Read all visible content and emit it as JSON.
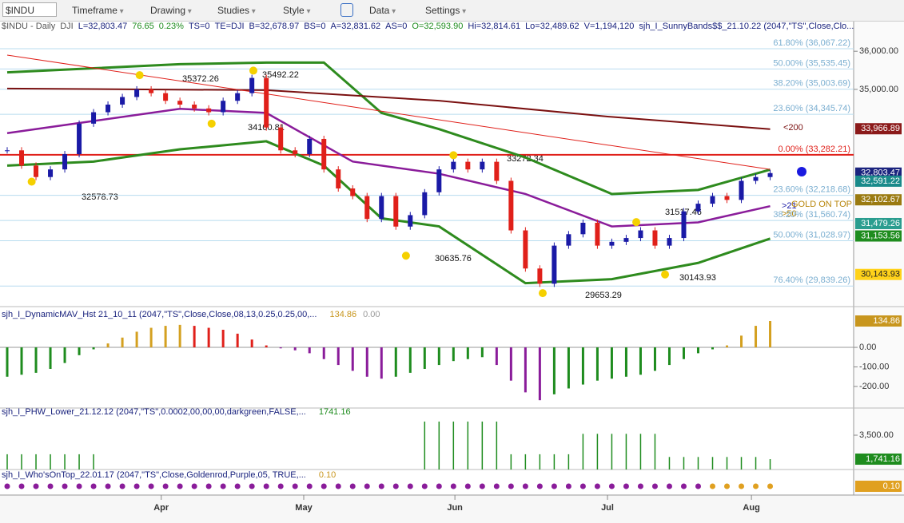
{
  "toolbar": {
    "symbol": "$INDU",
    "buttons": [
      "Timeframe",
      "Drawing",
      "Studies",
      "Style",
      "Data",
      "Settings"
    ]
  },
  "header": {
    "parts": [
      {
        "text": "$INDU - Daily",
        "color": "#555555"
      },
      {
        "text": "DJI",
        "color": "#555555"
      },
      {
        "text": "L=32,803.47",
        "color": "#1a237e"
      },
      {
        "text": "76.65",
        "color": "#1e8c1e"
      },
      {
        "text": "0.23%",
        "color": "#1e8c1e"
      },
      {
        "text": "TS=0",
        "color": "#1a237e"
      },
      {
        "text": "TE=DJI",
        "color": "#1a237e"
      },
      {
        "text": "B=32,678.97",
        "color": "#1a237e"
      },
      {
        "text": "BS=0",
        "color": "#1a237e"
      },
      {
        "text": "A=32,831.62",
        "color": "#1a237e"
      },
      {
        "text": "AS=0",
        "color": "#1a237e"
      },
      {
        "text": "O=32,593.90",
        "color": "#1e8c1e"
      },
      {
        "text": "Hi=32,814.61",
        "color": "#1a237e"
      },
      {
        "text": "Lo=32,489.62",
        "color": "#1a237e"
      },
      {
        "text": "V=1,194,120",
        "color": "#1a237e"
      },
      {
        "text": "sjh_I_SunnyBands$$_21.10.22 (2047,\"TS\",Close,Clo...",
        "color": "#1a237e"
      }
    ]
  },
  "x_axis": {
    "xlim": [
      -0.5,
      58.8
    ],
    "xticks": [
      {
        "value": 10.7,
        "label": "Apr"
      },
      {
        "value": 20.6,
        "label": "May"
      },
      {
        "value": 31.1,
        "label": "Jun"
      },
      {
        "value": 41.7,
        "label": "Jul"
      },
      {
        "value": 51.7,
        "label": "Aug"
      }
    ]
  },
  "price_pane": {
    "ylim": [
      29300,
      36800
    ],
    "yticks": [
      {
        "value": 36000,
        "label": "36,000.00"
      },
      {
        "value": 35000,
        "label": "35,000.00"
      }
    ],
    "up_color": "#1a1aa6",
    "down_color": "#e0201a",
    "closes": [
      33400,
      33000,
      32700,
      32900,
      33300,
      34100,
      34400,
      34600,
      34800,
      35000,
      34900,
      34700,
      34600,
      34500,
      34400,
      34700,
      34900,
      35300,
      34000,
      33400,
      33300,
      33700,
      32900,
      32400,
      32200,
      31600,
      32200,
      31400,
      31700,
      32300,
      32900,
      33100,
      32900,
      33100,
      32600,
      31300,
      30300,
      29900,
      30900,
      31200,
      31500,
      30900,
      31000,
      31100,
      31300,
      30900,
      31100,
      31800,
      32000,
      32200,
      32100,
      32600,
      32700,
      32803.47
    ],
    "lines": [
      {
        "color": "#2e8b1e",
        "width": 3,
        "x": [
          0,
          6,
          12,
          18,
          22,
          26,
          30,
          36,
          42,
          48,
          53
        ],
        "values": [
          35447,
          35553,
          35660,
          35702,
          35702,
          34383,
          33957,
          33213,
          32255,
          32362,
          32894
        ]
      },
      {
        "color": "#2e8b1e",
        "width": 3,
        "x": [
          0,
          6,
          12,
          18,
          22,
          26,
          30,
          36,
          42,
          48,
          53
        ],
        "values": [
          33000,
          33106,
          33426,
          33638,
          33000,
          31617,
          31404,
          29915,
          30021,
          30447,
          31085
        ]
      },
      {
        "color": "#7a1010",
        "width": 2,
        "x": [
          0,
          18,
          30,
          42,
          53
        ],
        "values": [
          35021,
          34979,
          34702,
          34277,
          33957
        ]
      },
      {
        "color": "#8a1c9a",
        "width": 2.5,
        "x": [
          0,
          6,
          12,
          18,
          24,
          30,
          36,
          42,
          48,
          53
        ],
        "values": [
          33851,
          34170,
          34489,
          34383,
          33106,
          32787,
          32255,
          31404,
          31511,
          31936
        ]
      },
      {
        "color": "#e0201a",
        "width": 1,
        "x": [
          0,
          53
        ],
        "values": [
          35900,
          32900
        ]
      }
    ],
    "fib_levels": [
      {
        "value": 36067.22,
        "label": "61.80% (36,067.22)"
      },
      {
        "value": 35535.45,
        "label": "50.00% (35,535.45)"
      },
      {
        "value": 35003.69,
        "label": "38.20% (35,003.69)"
      },
      {
        "value": 34345.74,
        "label": "23.60% (34,345.74)"
      },
      {
        "value": 33282.21,
        "label": "0.00% (33,282.21)"
      },
      {
        "value": 32218.68,
        "label": "23.60% (32,218.68)"
      },
      {
        "value": 31560.74,
        "label": "38.20% (31,560.74)"
      },
      {
        "value": 31028.97,
        "label": "50.00% (31,028.97)"
      },
      {
        "value": 29839.26,
        "label": "76.40% (29,839.26)"
      }
    ],
    "annotations": [
      {
        "x": 9.2,
        "value": 35372.26
      },
      {
        "x": 17.1,
        "value": 35492.22
      },
      {
        "x": 14.2,
        "value": 34100.81
      },
      {
        "x": 31,
        "value": 33272.34
      },
      {
        "x": 1.7,
        "value": 32578.73
      },
      {
        "x": 27.7,
        "value": 30635.76
      },
      {
        "x": 37.2,
        "value": 29653.29
      },
      {
        "x": 45.7,
        "value": 30143.93
      },
      {
        "x": 43.7,
        "value": 31517.46
      }
    ],
    "line_labels": [
      {
        "text": "<200",
        "color": "#7a1010"
      },
      {
        "text": ">21",
        "color": "#1a1aa6"
      },
      {
        "text": ">50",
        "color": "#b8860b"
      },
      {
        "text": "GOLD ON TOP",
        "color": "#b8860b"
      }
    ],
    "tags": [
      {
        "value": 33966.89,
        "label": "33,966.89",
        "color": "#8b1a1a"
      },
      {
        "value": 32803.47,
        "label": "32,803.47",
        "color": "#1a237e"
      },
      {
        "value": 32591.22,
        "label": "32,591.22",
        "color": "#1a8a8a"
      },
      {
        "value": 32102.67,
        "label": "32,102.67",
        "color": "#9a7a10"
      },
      {
        "value": 31479.26,
        "label": "31,479.26",
        "color": "#2a9d8f"
      },
      {
        "value": 31153.56,
        "label": "31,153.56",
        "color": "#1e8c1e"
      },
      {
        "value": 30143.93,
        "label": "30,143.93",
        "color": "#ffd21a"
      }
    ]
  },
  "histogram_pane": {
    "title": "sjh_I_DynamicMAV_Hst 21_10_11 (2047,\"TS\",Close,Close,08,13,0.25,0.25,00,...",
    "readouts": [
      {
        "text": "134.86",
        "color": "#c8961e"
      },
      {
        "text": "0.00",
        "color": "#999999"
      }
    ],
    "ylim": [
      -306,
      192
    ],
    "yticks": [
      {
        "value": 0,
        "label": "0.00"
      },
      {
        "value": -100,
        "label": "-100.00"
      },
      {
        "value": -200,
        "label": "-200.00"
      }
    ],
    "tag": {
      "value": 134.86,
      "label": "134.86",
      "color": "#c8961e"
    },
    "values": [
      -150,
      -140,
      -130,
      -110,
      -80,
      -40,
      -10,
      20,
      50,
      80,
      100,
      110,
      115,
      110,
      100,
      90,
      70,
      40,
      10,
      -5,
      -15,
      -30,
      -60,
      -90,
      -120,
      -150,
      -160,
      -150,
      -130,
      -110,
      -90,
      -70,
      -60,
      -50,
      -90,
      -170,
      -230,
      -270,
      -240,
      -210,
      -190,
      -170,
      -160,
      -150,
      -140,
      -120,
      -90,
      -60,
      -30,
      -10,
      10,
      60,
      110,
      134.86
    ]
  },
  "phw_pane": {
    "title": "sjh_I_PHW_Lower_21.12.12 (2047,\"TS\",0.0002,00,00,00,darkgreen,FALSE,...",
    "readouts": [
      {
        "text": "1741.16",
        "color": "#1e8c1e"
      }
    ],
    "ylim": [
      980,
      5260
    ],
    "yticks": [
      {
        "value": 3500,
        "label": "3,500.00"
      }
    ],
    "tag": {
      "value": 1741.16,
      "label": "1,741.16",
      "color": "#1e8c1e"
    },
    "color": "#1e8c1e",
    "values": [
      2100,
      2100,
      2100,
      2100,
      2100,
      2100,
      2100,
      null,
      null,
      null,
      null,
      null,
      null,
      null,
      null,
      null,
      null,
      null,
      null,
      null,
      null,
      null,
      null,
      null,
      null,
      null,
      null,
      null,
      null,
      4500,
      4500,
      4500,
      4500,
      4500,
      4500,
      2100,
      2100,
      2100,
      2100,
      2100,
      3600,
      3600,
      3600,
      3600,
      3600,
      3600,
      1900,
      1900,
      1900,
      1900,
      1900,
      1900,
      1900,
      1741.16
    ]
  },
  "wot_pane": {
    "title": "sjh_I_Who'sOnTop_22.01.17 (2047,\"TS\",Close,Goldenrod,Purple,05, TRUE,...",
    "readouts": [
      {
        "text": "0.10",
        "color": "#c8961e"
      }
    ],
    "tag": {
      "value": 0.1,
      "label": "0.10",
      "color": "#e0a020"
    },
    "positive_color": "#e0a020",
    "negative_color": "#8a1c9a",
    "values": [
      -0.1,
      -0.1,
      -0.1,
      -0.1,
      -0.1,
      -0.1,
      -0.1,
      -0.1,
      -0.1,
      -0.1,
      -0.1,
      -0.1,
      -0.1,
      -0.1,
      -0.1,
      -0.1,
      -0.1,
      -0.1,
      -0.1,
      -0.1,
      -0.1,
      -0.1,
      -0.1,
      -0.1,
      -0.1,
      -0.1,
      -0.1,
      -0.1,
      -0.1,
      -0.1,
      -0.1,
      -0.1,
      -0.1,
      -0.1,
      -0.1,
      -0.1,
      -0.1,
      -0.1,
      -0.1,
      -0.1,
      -0.1,
      -0.1,
      -0.1,
      -0.1,
      -0.1,
      -0.1,
      -0.1,
      -0.1,
      -0.1,
      0.1,
      0.1,
      0.1,
      0.1,
      0.1
    ]
  }
}
